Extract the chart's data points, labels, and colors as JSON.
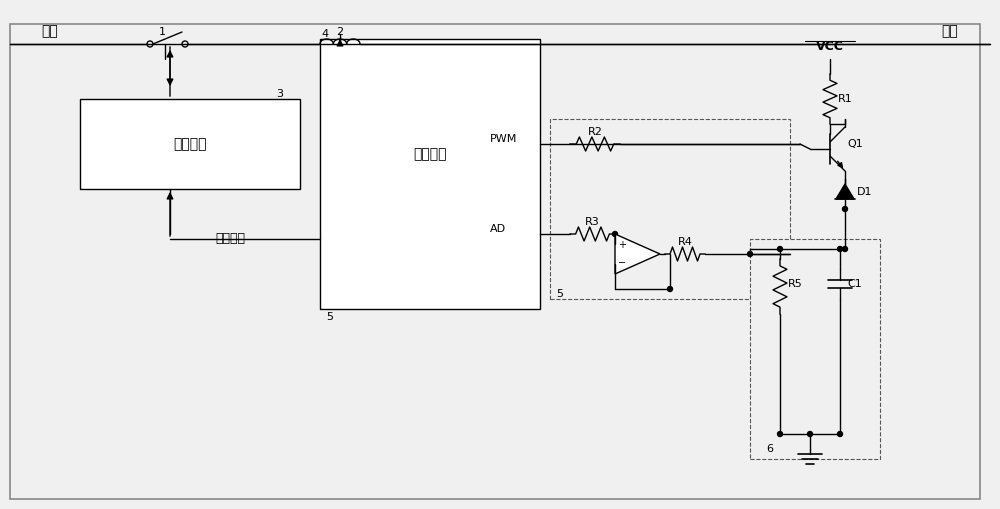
{
  "bg_color": "#f0f0f0",
  "line_color": "#000000",
  "box_color": "#ffffff",
  "dashed_color": "#666666",
  "text_color": "#000000",
  "border_color": "#888888",
  "fig_width": 10.0,
  "fig_height": 5.09,
  "labels": {
    "power": "电源",
    "load": "负载",
    "trip_coil": "脱扣线圈",
    "microprocessor": "微处理器",
    "trip_control": "脱扣控制",
    "pwm": "PWM",
    "ad": "AD",
    "vcc": "VCC",
    "r1": "R1",
    "r2": "R2",
    "r3": "R3",
    "r4": "R4",
    "r5": "R5",
    "c1": "C1",
    "q1": "Q1",
    "d1": "D1",
    "n1": "1",
    "n2": "2",
    "n3": "3",
    "n4": "4",
    "n5": "5",
    "n6": "6"
  }
}
